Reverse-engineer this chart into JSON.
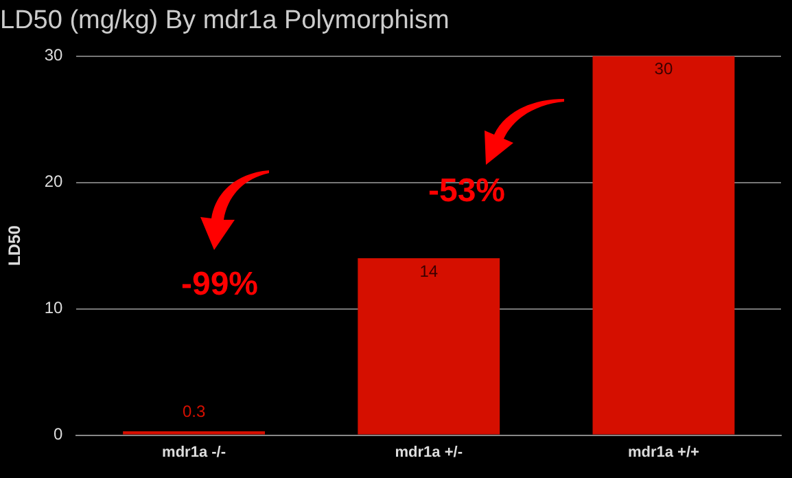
{
  "chart_data": {
    "type": "bar",
    "title": "LD50 (mg/kg) By mdr1a Polymorphism",
    "ylabel": "LD50",
    "categories": [
      "mdr1a -/-",
      "mdr1a +/-",
      "mdr1a +/+"
    ],
    "values": [
      0.3,
      14,
      30
    ],
    "color": "#d50f00",
    "ylim": [
      0,
      30
    ],
    "yticks": [
      0,
      10,
      20,
      30
    ],
    "grid": "y",
    "data_labels": true,
    "annotations": [
      "-99%",
      "-53%"
    ]
  }
}
